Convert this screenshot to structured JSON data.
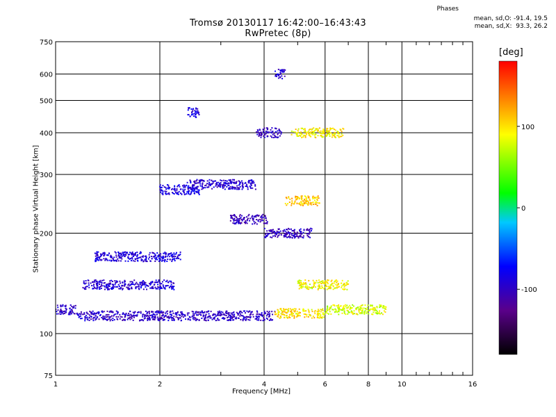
{
  "header": {
    "title": "Tromsø 20130117 16:42:00–16:43:43",
    "subtitle": "RwPretec (8p)",
    "phases_label": "Phases",
    "stats_o": "mean, sd,O: -91.4, 19.5",
    "stats_x": "mean, sd,X:  93.3, 26.2"
  },
  "chart_data": {
    "type": "scatter",
    "title": "Tromsø 20130117 16:42:00–16:43:43",
    "subtitle": "RwPretec (8p)",
    "xlabel": "Frequency [MHz]",
    "ylabel": "Stationary phase Virtual Height [km]",
    "x_scale": "log",
    "y_scale": "log",
    "xlim": [
      1,
      16
    ],
    "ylim": [
      75,
      750
    ],
    "x_ticks": [
      1,
      2,
      4,
      6,
      8,
      10,
      16
    ],
    "y_ticks": [
      75,
      100,
      200,
      300,
      400,
      500,
      600,
      750
    ],
    "grid": true,
    "colorbar": {
      "label": "[deg]",
      "range": [
        -180,
        180
      ],
      "ticks": [
        -100,
        0,
        100
      ],
      "colors": [
        "#000000",
        "#5a008a",
        "#0000ff",
        "#00c8ff",
        "#00ff00",
        "#ffff00",
        "#ff0000"
      ]
    },
    "series": [
      {
        "mode": "O",
        "mean_phase": -91.4,
        "sd_phase": 19.5,
        "traces": [
          {
            "f_start": 1.0,
            "f_end": 1.15,
            "h": 118,
            "phase": -100
          },
          {
            "f_start": 1.15,
            "f_end": 4.3,
            "h": 113,
            "phase": -98
          },
          {
            "f_start": 1.2,
            "f_end": 2.2,
            "h": 140,
            "phase": -92
          },
          {
            "f_start": 1.3,
            "f_end": 2.3,
            "h": 170,
            "phase": -90
          },
          {
            "f_start": 2.0,
            "f_end": 2.6,
            "h": 270,
            "phase": -85
          },
          {
            "f_start": 2.4,
            "f_end": 3.8,
            "h": 280,
            "phase": -95
          },
          {
            "f_start": 2.4,
            "f_end": 2.6,
            "h": 460,
            "phase": -90
          },
          {
            "f_start": 3.2,
            "f_end": 4.1,
            "h": 220,
            "phase": -105
          },
          {
            "f_start": 3.8,
            "f_end": 4.5,
            "h": 400,
            "phase": -100
          },
          {
            "f_start": 4.3,
            "f_end": 4.6,
            "h": 600,
            "phase": -95
          },
          {
            "f_start": 4.0,
            "f_end": 5.5,
            "h": 200,
            "phase": -100
          }
        ]
      },
      {
        "mode": "X",
        "mean_phase": 93.3,
        "sd_phase": 26.2,
        "traces": [
          {
            "f_start": 4.3,
            "f_end": 6.0,
            "h": 115,
            "phase": 100
          },
          {
            "f_start": 4.6,
            "f_end": 5.8,
            "h": 250,
            "phase": 110
          },
          {
            "f_start": 4.8,
            "f_end": 6.8,
            "h": 400,
            "phase": 95
          },
          {
            "f_start": 5.0,
            "f_end": 7.0,
            "h": 140,
            "phase": 90
          },
          {
            "f_start": 6.0,
            "f_end": 9.0,
            "h": 118,
            "phase": 80
          }
        ]
      }
    ]
  }
}
